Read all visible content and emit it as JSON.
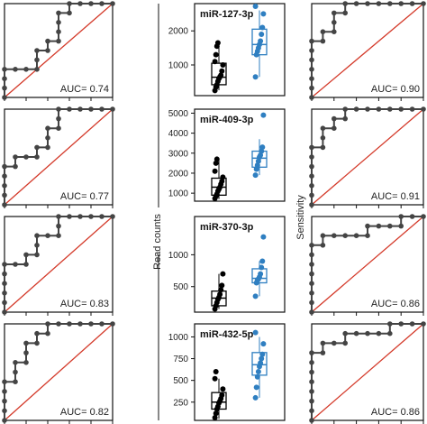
{
  "chart_data": {
    "axis_labels": {
      "read_counts": "Read counts",
      "sensitivity": "Sensitivity"
    },
    "roc_left": [
      {
        "auc_label": "AUC= 0.74",
        "points": [
          [
            1,
            0
          ],
          [
            1,
            0.1
          ],
          [
            1,
            0.2
          ],
          [
            1,
            0.3
          ],
          [
            0.9,
            0.3
          ],
          [
            0.8,
            0.3
          ],
          [
            0.7,
            0.3
          ],
          [
            0.7,
            0.4
          ],
          [
            0.7,
            0.5
          ],
          [
            0.6,
            0.5
          ],
          [
            0.6,
            0.6
          ],
          [
            0.5,
            0.6
          ],
          [
            0.5,
            0.7
          ],
          [
            0.5,
            0.8
          ],
          [
            0.5,
            0.9
          ],
          [
            0.4,
            0.9
          ],
          [
            0.4,
            1.0
          ],
          [
            0.3,
            1.0
          ],
          [
            0.2,
            1.0
          ],
          [
            0.1,
            1.0
          ],
          [
            0,
            1.0
          ]
        ]
      },
      {
        "auc_label": "AUC= 0.77",
        "points": [
          [
            1,
            0
          ],
          [
            1,
            0.1
          ],
          [
            1,
            0.2
          ],
          [
            1,
            0.3
          ],
          [
            1,
            0.4
          ],
          [
            0.9,
            0.4
          ],
          [
            0.9,
            0.5
          ],
          [
            0.8,
            0.5
          ],
          [
            0.7,
            0.5
          ],
          [
            0.7,
            0.6
          ],
          [
            0.6,
            0.6
          ],
          [
            0.6,
            0.7
          ],
          [
            0.6,
            0.8
          ],
          [
            0.5,
            0.8
          ],
          [
            0.5,
            0.9
          ],
          [
            0.5,
            1.0
          ],
          [
            0.4,
            1.0
          ],
          [
            0.3,
            1.0
          ],
          [
            0.2,
            1.0
          ],
          [
            0.1,
            1.0
          ],
          [
            0,
            1.0
          ]
        ]
      },
      {
        "auc_label": "AUC= 0.83",
        "points": [
          [
            1,
            0
          ],
          [
            1,
            0.1
          ],
          [
            1,
            0.2
          ],
          [
            1,
            0.3
          ],
          [
            1,
            0.4
          ],
          [
            1,
            0.5
          ],
          [
            0.9,
            0.5
          ],
          [
            0.8,
            0.5
          ],
          [
            0.8,
            0.6
          ],
          [
            0.7,
            0.6
          ],
          [
            0.7,
            0.7
          ],
          [
            0.7,
            0.8
          ],
          [
            0.6,
            0.8
          ],
          [
            0.5,
            0.8
          ],
          [
            0.5,
            0.9
          ],
          [
            0.5,
            1.0
          ],
          [
            0.4,
            1.0
          ],
          [
            0.3,
            1.0
          ],
          [
            0.2,
            1.0
          ],
          [
            0.1,
            1.0
          ],
          [
            0,
            1.0
          ]
        ]
      },
      {
        "auc_label": "AUC= 0.82",
        "points": [
          [
            1,
            0
          ],
          [
            1,
            0.1
          ],
          [
            1,
            0.2
          ],
          [
            1,
            0.3
          ],
          [
            1,
            0.4
          ],
          [
            0.9,
            0.4
          ],
          [
            0.9,
            0.5
          ],
          [
            0.9,
            0.6
          ],
          [
            0.8,
            0.6
          ],
          [
            0.8,
            0.7
          ],
          [
            0.8,
            0.8
          ],
          [
            0.7,
            0.8
          ],
          [
            0.7,
            0.9
          ],
          [
            0.6,
            0.9
          ],
          [
            0.6,
            1.0
          ],
          [
            0.5,
            1.0
          ],
          [
            0.4,
            1.0
          ],
          [
            0.3,
            1.0
          ],
          [
            0.2,
            1.0
          ],
          [
            0.1,
            1.0
          ],
          [
            0,
            1.0
          ]
        ]
      }
    ],
    "roc_right": [
      {
        "auc_label": "AUC= 0.90",
        "points": [
          [
            1,
            0
          ],
          [
            1,
            0.1
          ],
          [
            1,
            0.2
          ],
          [
            1,
            0.3
          ],
          [
            1,
            0.4
          ],
          [
            1,
            0.5
          ],
          [
            1,
            0.6
          ],
          [
            0.9,
            0.6
          ],
          [
            0.9,
            0.7
          ],
          [
            0.8,
            0.7
          ],
          [
            0.8,
            0.8
          ],
          [
            0.8,
            0.9
          ],
          [
            0.7,
            0.9
          ],
          [
            0.7,
            1.0
          ],
          [
            0.6,
            1.0
          ],
          [
            0.5,
            1.0
          ],
          [
            0.4,
            1.0
          ],
          [
            0.3,
            1.0
          ],
          [
            0.2,
            1.0
          ],
          [
            0.1,
            1.0
          ],
          [
            0,
            1.0
          ]
        ]
      },
      {
        "auc_label": "AUC= 0.91",
        "points": [
          [
            1,
            0
          ],
          [
            1,
            0.1
          ],
          [
            1,
            0.2
          ],
          [
            1,
            0.3
          ],
          [
            1,
            0.4
          ],
          [
            1,
            0.5
          ],
          [
            1,
            0.6
          ],
          [
            0.9,
            0.6
          ],
          [
            0.9,
            0.7
          ],
          [
            0.9,
            0.8
          ],
          [
            0.8,
            0.8
          ],
          [
            0.8,
            0.9
          ],
          [
            0.7,
            0.9
          ],
          [
            0.7,
            1.0
          ],
          [
            0.6,
            1.0
          ],
          [
            0.5,
            1.0
          ],
          [
            0.4,
            1.0
          ],
          [
            0.3,
            1.0
          ],
          [
            0.2,
            1.0
          ],
          [
            0.1,
            1.0
          ],
          [
            0,
            1.0
          ]
        ]
      },
      {
        "auc_label": "AUC= 0.86",
        "points": [
          [
            1,
            0
          ],
          [
            1,
            0.1
          ],
          [
            1,
            0.2
          ],
          [
            1,
            0.3
          ],
          [
            1,
            0.4
          ],
          [
            1,
            0.5
          ],
          [
            1,
            0.6
          ],
          [
            1,
            0.7
          ],
          [
            0.9,
            0.7
          ],
          [
            0.9,
            0.8
          ],
          [
            0.8,
            0.8
          ],
          [
            0.7,
            0.8
          ],
          [
            0.6,
            0.8
          ],
          [
            0.5,
            0.8
          ],
          [
            0.5,
            0.9
          ],
          [
            0.4,
            0.9
          ],
          [
            0.3,
            0.9
          ],
          [
            0.2,
            0.9
          ],
          [
            0.2,
            1.0
          ],
          [
            0.1,
            1.0
          ],
          [
            0,
            1.0
          ]
        ]
      },
      {
        "auc_label": "AUC= 0.86",
        "points": [
          [
            1,
            0
          ],
          [
            1,
            0.1
          ],
          [
            1,
            0.2
          ],
          [
            1,
            0.3
          ],
          [
            1,
            0.4
          ],
          [
            1,
            0.5
          ],
          [
            1,
            0.6
          ],
          [
            1,
            0.7
          ],
          [
            0.9,
            0.7
          ],
          [
            0.9,
            0.8
          ],
          [
            0.8,
            0.8
          ],
          [
            0.7,
            0.8
          ],
          [
            0.7,
            0.9
          ],
          [
            0.6,
            0.9
          ],
          [
            0.5,
            0.9
          ],
          [
            0.4,
            0.9
          ],
          [
            0.3,
            0.9
          ],
          [
            0.3,
            1.0
          ],
          [
            0.2,
            1.0
          ],
          [
            0.1,
            1.0
          ],
          [
            0,
            1.0
          ]
        ]
      }
    ],
    "boxplots": [
      {
        "title": "miR-127-3p",
        "ylim": [
          100,
          2800
        ],
        "ticks": [
          1000,
          2000
        ],
        "groups": [
          {
            "color": "#000000",
            "q1": 420,
            "median": 640,
            "q3": 1050,
            "whisker_low": 260,
            "whisker_high": 1600,
            "points": [
              250,
              350,
              420,
              520,
              600,
              650,
              700,
              820,
              1000,
              1100,
              1300,
              1550,
              1650
            ]
          },
          {
            "color": "#2f7fc1",
            "q1": 1300,
            "median": 1600,
            "q3": 2050,
            "whisker_low": 650,
            "whisker_high": 2600,
            "points": [
              650,
              1300,
              1400,
              1500,
              1600,
              1700,
              1900,
              2100,
              2500,
              2800
            ]
          }
        ]
      },
      {
        "title": "miR-409-3p",
        "ylim": [
          600,
          5200
        ],
        "ticks": [
          1000,
          2000,
          3000,
          4000,
          5000
        ],
        "groups": [
          {
            "color": "#000000",
            "q1": 900,
            "median": 1300,
            "q3": 1750,
            "whisker_low": 700,
            "whisker_high": 2700,
            "points": [
              700,
              850,
              950,
              1100,
              1200,
              1300,
              1450,
              1600,
              1800,
              2100,
              2500,
              2700
            ]
          },
          {
            "color": "#2f7fc1",
            "q1": 2300,
            "median": 2750,
            "q3": 3100,
            "whisker_low": 1900,
            "whisker_high": 3700,
            "points": [
              1900,
              2200,
              2400,
              2600,
              2800,
              2900,
              3100,
              3300,
              4900
            ]
          }
        ]
      },
      {
        "title": "miR-370-3p",
        "ylim": [
          100,
          1600
        ],
        "ticks": [
          500,
          1000
        ],
        "groups": [
          {
            "color": "#000000",
            "q1": 200,
            "median": 320,
            "q3": 430,
            "whisker_low": 150,
            "whisker_high": 700,
            "points": [
              150,
              200,
              250,
              300,
              330,
              380,
              450,
              520,
              700
            ]
          },
          {
            "color": "#2f7fc1",
            "q1": 560,
            "median": 630,
            "q3": 780,
            "whisker_low": 350,
            "whisker_high": 900,
            "points": [
              350,
              560,
              600,
              620,
              650,
              700,
              800,
              900,
              1280
            ]
          }
        ]
      },
      {
        "title": "miR-432-5p",
        "ylim": [
          40,
          1150
        ],
        "ticks": [
          250,
          500,
          750,
          1000
        ],
        "groups": [
          {
            "color": "#000000",
            "q1": 170,
            "median": 250,
            "q3": 360,
            "whisker_low": 60,
            "whisker_high": 520,
            "points": [
              60,
              120,
              170,
              200,
              240,
              260,
              290,
              330,
              400,
              520,
              600
            ]
          },
          {
            "color": "#2f7fc1",
            "q1": 560,
            "median": 680,
            "q3": 820,
            "whisker_low": 300,
            "whisker_high": 1000,
            "points": [
              300,
              420,
              540,
              600,
              660,
              700,
              750,
              800,
              920,
              1050
            ]
          }
        ]
      }
    ]
  }
}
